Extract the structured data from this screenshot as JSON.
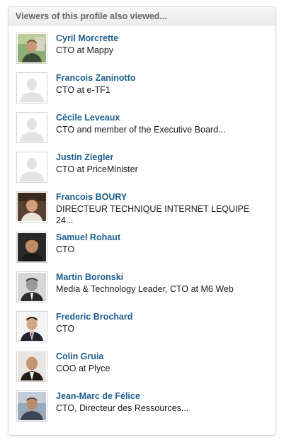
{
  "header": {
    "title": "Viewers of this profile also viewed..."
  },
  "colors": {
    "link": "#1d5e8e",
    "text": "#1a1a1a",
    "header_text": "#666666",
    "border": "#d9d9d9"
  },
  "people": [
    {
      "name": "Cyril Morcrette",
      "title": "CTO at Mappy",
      "photo": "photo"
    },
    {
      "name": "Francois Zaninotto",
      "title": "CTO at e-TF1",
      "photo": "placeholder-silhouette-icon"
    },
    {
      "name": "Cécile Leveaux",
      "title": "CTO and member of the Executive Board...",
      "photo": "placeholder-silhouette-icon"
    },
    {
      "name": "Justin Ziegler",
      "title": "CTO at PriceMinister",
      "photo": "placeholder-silhouette-icon"
    },
    {
      "name": "Francois BOURY",
      "title": "DIRECTEUR TECHNIQUE INTERNET LEQUIPE 24...",
      "photo": "photo"
    },
    {
      "name": "Samuel Rohaut",
      "title": "CTO",
      "photo": "photo"
    },
    {
      "name": "Martin Boronski",
      "title": "Media & Technology Leader, CTO at M6 Web",
      "photo": "photo"
    },
    {
      "name": "Frederic Brochard",
      "title": "CTO",
      "photo": "photo"
    },
    {
      "name": "Colin Gruia",
      "title": "COO at Plyce",
      "photo": "photo"
    },
    {
      "name": "Jean-Marc de Félice",
      "title": "CTO, Directeur des Ressources...",
      "photo": "photo"
    }
  ]
}
